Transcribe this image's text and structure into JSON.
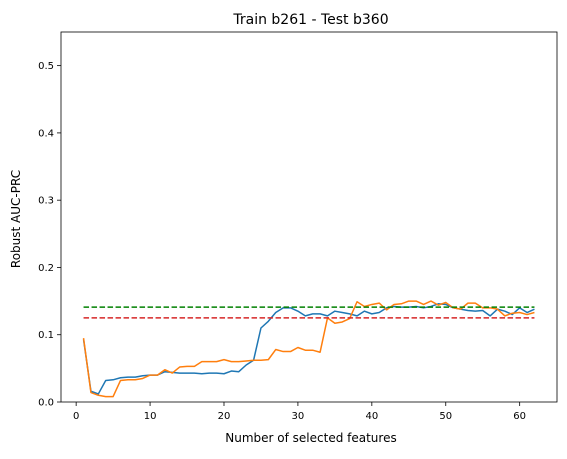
{
  "chart_data": {
    "type": "line",
    "title": "Train b261 - Test b360",
    "xlabel": "Number of selected features",
    "ylabel": "Robust AUC-PRC",
    "xlim": [
      -2.05,
      65.05
    ],
    "ylim": [
      0,
      0.55
    ],
    "xticks": [
      0,
      10,
      20,
      30,
      40,
      50,
      60
    ],
    "yticks": [
      0.0,
      0.1,
      0.2,
      0.3,
      0.4,
      0.5
    ],
    "grid": false,
    "series": [
      {
        "color": "#1f77b4",
        "style": "solid",
        "x": [
          1,
          2,
          3,
          4,
          5,
          6,
          7,
          8,
          9,
          10,
          11,
          12,
          13,
          14,
          15,
          16,
          17,
          18,
          19,
          20,
          21,
          22,
          23,
          24,
          25,
          26,
          27,
          28,
          29,
          30,
          31,
          32,
          33,
          34,
          35,
          36,
          37,
          38,
          39,
          40,
          41,
          42,
          43,
          44,
          45,
          46,
          47,
          48,
          49,
          50,
          51,
          52,
          53,
          54,
          55,
          56,
          57,
          58,
          59,
          60,
          61,
          62
        ],
        "y": [
          0.093,
          0.016,
          0.012,
          0.032,
          0.033,
          0.036,
          0.037,
          0.037,
          0.039,
          0.04,
          0.04,
          0.045,
          0.044,
          0.043,
          0.043,
          0.043,
          0.042,
          0.043,
          0.043,
          0.042,
          0.046,
          0.045,
          0.055,
          0.062,
          0.11,
          0.12,
          0.133,
          0.14,
          0.14,
          0.135,
          0.128,
          0.131,
          0.131,
          0.128,
          0.135,
          0.133,
          0.131,
          0.128,
          0.135,
          0.131,
          0.133,
          0.14,
          0.142,
          0.141,
          0.141,
          0.142,
          0.14,
          0.142,
          0.146,
          0.145,
          0.14,
          0.138,
          0.136,
          0.135,
          0.136,
          0.128,
          0.138,
          0.135,
          0.13,
          0.14,
          0.133,
          0.138
        ]
      },
      {
        "color": "#ff7f0e",
        "style": "solid",
        "x": [
          1,
          2,
          3,
          4,
          5,
          6,
          7,
          8,
          9,
          10,
          11,
          12,
          13,
          14,
          15,
          16,
          17,
          18,
          19,
          20,
          21,
          22,
          23,
          24,
          25,
          26,
          27,
          28,
          29,
          30,
          31,
          32,
          33,
          34,
          35,
          36,
          37,
          38,
          39,
          40,
          41,
          42,
          43,
          44,
          45,
          46,
          47,
          48,
          49,
          50,
          51,
          52,
          53,
          54,
          55,
          56,
          57,
          58,
          59,
          60,
          61,
          62
        ],
        "y": [
          0.095,
          0.014,
          0.01,
          0.008,
          0.008,
          0.032,
          0.033,
          0.033,
          0.035,
          0.04,
          0.04,
          0.048,
          0.043,
          0.052,
          0.053,
          0.053,
          0.06,
          0.06,
          0.06,
          0.063,
          0.06,
          0.06,
          0.061,
          0.062,
          0.062,
          0.063,
          0.078,
          0.075,
          0.075,
          0.081,
          0.077,
          0.077,
          0.074,
          0.125,
          0.117,
          0.119,
          0.124,
          0.149,
          0.142,
          0.145,
          0.147,
          0.137,
          0.145,
          0.146,
          0.15,
          0.15,
          0.145,
          0.15,
          0.144,
          0.148,
          0.14,
          0.138,
          0.147,
          0.147,
          0.14,
          0.14,
          0.138,
          0.128,
          0.132,
          0.133,
          0.13,
          0.133
        ]
      },
      {
        "color": "#008000",
        "style": "dashed",
        "x": [
          1,
          62
        ],
        "y": [
          0.141,
          0.141
        ]
      },
      {
        "color": "#d62728",
        "style": "dashed",
        "x": [
          1,
          62
        ],
        "y": [
          0.125,
          0.125
        ]
      }
    ]
  }
}
